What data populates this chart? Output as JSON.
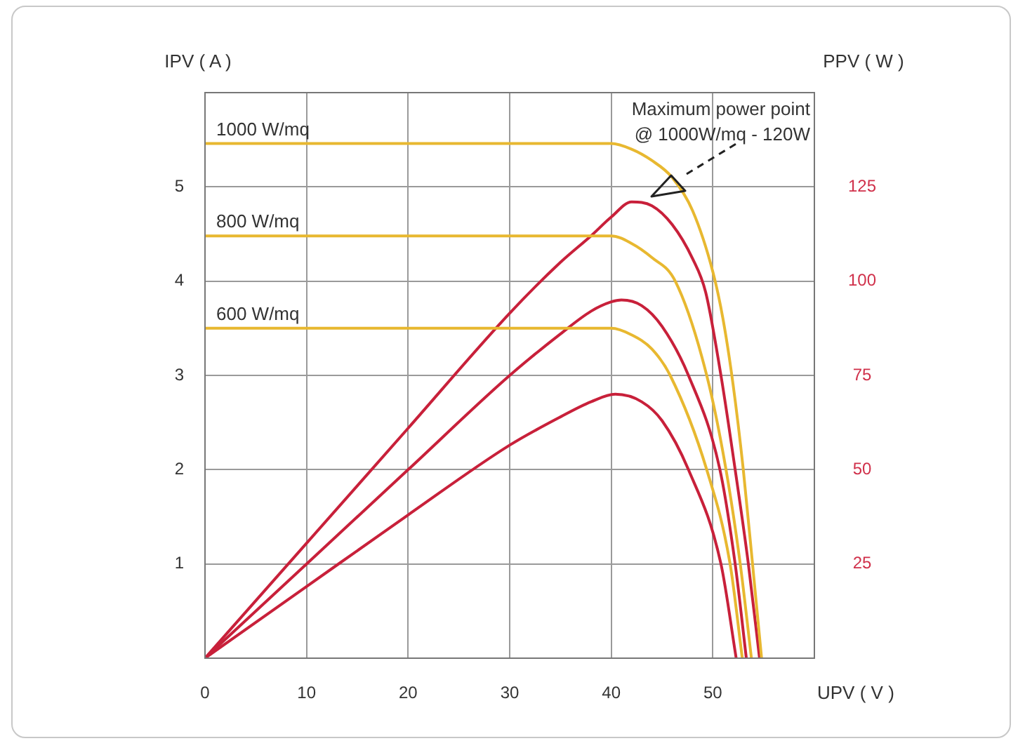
{
  "chart_data": {
    "type": "line",
    "xlabel": "UPV ( V )",
    "ylabel": "IPV ( A )",
    "y2label": "PPV ( W )",
    "xlim": [
      0,
      60
    ],
    "xticks": [
      0,
      10,
      20,
      30,
      40,
      50
    ],
    "ylim": [
      0,
      6
    ],
    "yticks": [
      1,
      2,
      3,
      4,
      5
    ],
    "y2lim": [
      0,
      150
    ],
    "y2ticks": [
      25,
      50,
      75,
      100,
      125
    ],
    "grid": true,
    "legend": false,
    "annotations": [
      {
        "text": "Maximum power point\n@ 1000W/mq - 120W",
        "x": 46.3,
        "y": 5.1
      }
    ],
    "series": [
      {
        "name": "1000 W/mq",
        "type": "line",
        "color": "#e8b830",
        "x": [
          0,
          40,
          42,
          44,
          46,
          48,
          50,
          51,
          52,
          53,
          54,
          54.8
        ],
        "values": [
          5.46,
          5.46,
          5.4,
          5.28,
          5.1,
          4.75,
          4.1,
          3.6,
          2.9,
          2.0,
          0.9,
          0
        ]
      },
      {
        "name": "800 W/mq",
        "type": "line",
        "color": "#e8b830",
        "x": [
          0,
          40,
          42,
          44,
          46.3,
          49.4,
          51.3,
          52.7,
          53.8
        ],
        "values": [
          4.48,
          4.48,
          4.4,
          4.25,
          4.0,
          3.0,
          2.0,
          1.0,
          0
        ]
      },
      {
        "name": "600 W/mq",
        "type": "line",
        "color": "#e8b830",
        "x": [
          0,
          40,
          42,
          44,
          45.8,
          49.4,
          51.7,
          52.9
        ],
        "values": [
          3.5,
          3.5,
          3.43,
          3.28,
          3.0,
          2.0,
          1.0,
          0
        ]
      },
      {
        "type": "line",
        "axis": "y2",
        "color": "#c8203a",
        "x": [
          0,
          10,
          20,
          30,
          35,
          38,
          40,
          42,
          44,
          46,
          48,
          49.3,
          50.8,
          52.2,
          53.5,
          54.6
        ],
        "values": [
          0,
          30.5,
          61,
          91.5,
          105,
          112,
          117,
          121,
          120,
          115,
          106,
          97,
          75,
          50,
          25,
          0
        ]
      },
      {
        "type": "line",
        "axis": "y2",
        "color": "#c8203a",
        "x": [
          0,
          10,
          20,
          30,
          35,
          38,
          40,
          41,
          43,
          45,
          47.6,
          50.7,
          52.2,
          53.3
        ],
        "values": [
          0,
          25,
          50,
          75,
          86,
          92,
          94.5,
          95,
          93.5,
          88,
          75,
          50,
          25,
          0
        ]
      },
      {
        "type": "line",
        "axis": "y2",
        "color": "#c8203a",
        "x": [
          0,
          10,
          20,
          30,
          35,
          38,
          40.4,
          43,
          45,
          47.6,
          50.8,
          52.3
        ],
        "values": [
          0,
          19,
          38,
          56.5,
          64,
          68,
          70,
          68,
          63,
          50,
          25,
          0
        ]
      }
    ]
  }
}
